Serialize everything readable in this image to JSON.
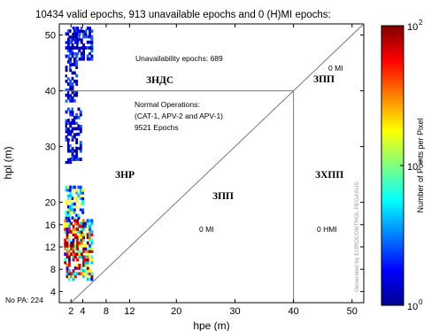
{
  "chart_data": {
    "type": "heatmap",
    "title": "10434 valid epochs, 913 unavailable epochs and 0 (H)MI epochs:",
    "xlabel": "hpe (m)",
    "ylabel": "hpl (m)",
    "xlim": [
      0,
      52
    ],
    "ylim": [
      2,
      52
    ],
    "x_ticks": [
      2,
      4,
      8,
      12,
      20,
      30,
      40,
      50
    ],
    "y_ticks": [
      4,
      8,
      12,
      16,
      20,
      30,
      40,
      50
    ],
    "grid": false,
    "alert_limit": 40,
    "colorbar": {
      "label": "Number of Points per Pixel",
      "scale": "log",
      "range": [
        1,
        100
      ],
      "ticks": [
        {
          "label": "10",
          "exp": "0",
          "value": 1
        },
        {
          "label": "10",
          "exp": "1",
          "value": 10
        },
        {
          "label": "10",
          "exp": "2",
          "value": 100
        }
      ]
    },
    "annotations": {
      "unavailability": "Unavailability epochs: 689",
      "normal_ops": [
        "Normal Operations:",
        "(CAT-1, APV-2 and APV-1)",
        "9521 Epochs"
      ],
      "mi_upper": "0 MI",
      "mi_lower": "0 MI",
      "hmi": "0 HMI",
      "no_pa": "No PA: 224",
      "watermark": "Generated by EUROCONTROL PEGASUS"
    },
    "region_labels": {
      "zndc": "ЗНДС",
      "zpp_top": "ЗПП",
      "znr": "ЗНР",
      "zpp_mid": "ЗПП",
      "zhpp": "ЗХПП"
    },
    "clusters": [
      {
        "x": [
          1.5,
          5.5
        ],
        "y": [
          45.5,
          51.5
        ],
        "level": "low"
      },
      {
        "x": [
          1,
          3
        ],
        "y": [
          38,
          51
        ],
        "level": "low"
      },
      {
        "x": [
          1,
          3.5
        ],
        "y": [
          27,
          37
        ],
        "level": "low"
      },
      {
        "x": [
          1,
          4
        ],
        "y": [
          16,
          23
        ],
        "level": "mid"
      },
      {
        "x": [
          0.8,
          5.5
        ],
        "y": [
          6,
          17
        ],
        "level": "high"
      }
    ]
  }
}
